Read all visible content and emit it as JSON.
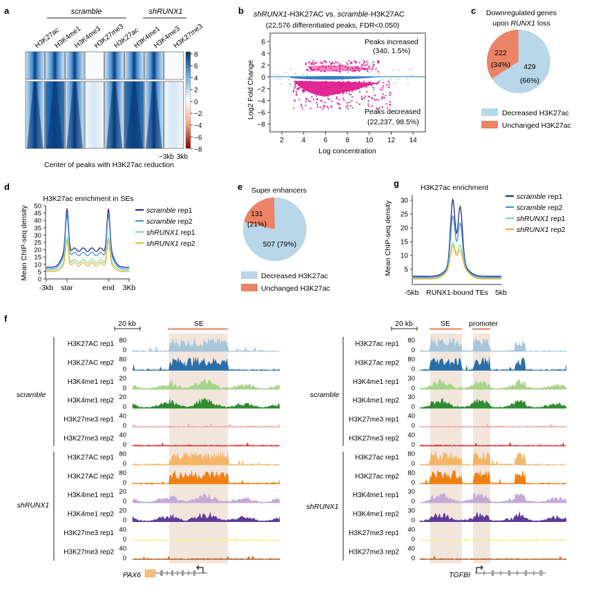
{
  "panel_a": {
    "letter": "a",
    "group1": "scramble",
    "group2": "shRUNX1",
    "cols": [
      "H3K27ac",
      "H3K4me1",
      "H3K4me3",
      "H3K27me3",
      "H3K27ac",
      "H3K4me1",
      "H3K4me3",
      "H3K27me3"
    ],
    "colorbar_ticks": [
      "8",
      "6",
      "4",
      "2",
      "0",
      "−2",
      "−4",
      "−6",
      "−8"
    ],
    "xticks": [
      "−3kb",
      "3kb"
    ],
    "caption": "Center of peaks with H3K27ac reduction"
  },
  "panel_b": {
    "letter": "b",
    "title1_italic": "shRUNX1",
    "title1_rest": "-H3K27AC vs. ",
    "title1_italic2": "scramble",
    "title1_end": "-H3K27AC",
    "title2": "(22,576 differentiated peaks, FDR<0.050)",
    "ylabel": "Log2 Fold Change",
    "xlabel": "Log concentration",
    "xticks": [
      "2",
      "4",
      "6",
      "8",
      "10",
      "12",
      "14"
    ],
    "yticks": [
      "6",
      "4",
      "2",
      "0",
      "−2",
      "−4",
      "−6",
      "−8"
    ],
    "ann_up1": "Peaks increased",
    "ann_up2": "(340, 1.5%)",
    "ann_dn1": "Peaks decreased",
    "ann_dn2": "(22,237, 98.5%)"
  },
  "panel_c": {
    "letter": "c",
    "title1": "Downregulated genes",
    "title2_pre": "upon ",
    "title2_italic": "RUNX1",
    "title2_post": " loss",
    "slice1_n": "429",
    "slice1_pct": "(66%)",
    "slice2_n": "222",
    "slice2_pct": "(34%)",
    "legend1": "Decreased H3K27ac",
    "legend2": "Unchanged H3K27ac"
  },
  "panel_d": {
    "letter": "d",
    "title": "H3K27ac enrichment in SEs",
    "ylabel": "Mean ChIP-seq density",
    "yticks": [
      "50",
      "45",
      "40",
      "35",
      "30",
      "25",
      "20",
      "15",
      "10",
      "5",
      "0"
    ],
    "xticks": [
      "-3kb",
      "star",
      "end",
      "3Kb"
    ],
    "legend": [
      {
        "it": "scramble",
        "rest": " rep1",
        "color": "#1f2a8a"
      },
      {
        "it": "scramble",
        "rest": " rep2",
        "color": "#3d8fe0"
      },
      {
        "it": "shRUNX1",
        "rest": " rep1",
        "color": "#7fe07f"
      },
      {
        "it": "shRUNX1",
        "rest": " rep2",
        "color": "#f0b23a"
      }
    ]
  },
  "panel_e": {
    "letter": "e",
    "title": "Super enhancers",
    "slice1": "507 (79%)",
    "slice2_n": "131",
    "slice2_pct": "(21%)",
    "legend1": "Decreased H3K27ac",
    "legend2": "Unchanged H3K27ac"
  },
  "panel_g": {
    "letter": "g",
    "title": "H3K27ac enrichment",
    "ylabel": "Mean ChIP-seq density",
    "yticks": [
      "30",
      "25",
      "20",
      "15",
      "10",
      "5"
    ],
    "xticks": [
      "-5kb",
      "RUNX1-bound TEs",
      "5kb"
    ],
    "legend": [
      {
        "it": "scramble",
        "rest": " rep1",
        "color": "#1f2a8a"
      },
      {
        "it": "scramble",
        "rest": " rep2",
        "color": "#3d8fe0"
      },
      {
        "it": "shRUNX1",
        "rest": " rep1",
        "color": "#7fe07f"
      },
      {
        "it": "shRUNX1",
        "rest": " rep2",
        "color": "#f0b23a"
      }
    ]
  },
  "panel_f": {
    "letter": "f",
    "scale": "20 kb",
    "left_region": "SE",
    "right_region1": "SE",
    "right_region2": "promoter",
    "group1": "scramble",
    "group2": "shRUNX1",
    "left_gene": "PAX6",
    "right_gene": "TGFBI",
    "left_tracks": [
      {
        "label": "H3K27AC rep1",
        "max": "80",
        "color": "#a7c6da"
      },
      {
        "label": "H3K27AC rep2",
        "max": "80",
        "color": "#2a6fa8"
      },
      {
        "label": "H3K4me1 rep1",
        "max": "20",
        "color": "#a8d48a"
      },
      {
        "label": "H3K4me1 rep2",
        "max": "20",
        "color": "#2e8b2e"
      },
      {
        "label": "H3K27me3 rep1",
        "max": "40",
        "color": "#f2a7a7"
      },
      {
        "label": "H3K27me3 rep2",
        "max": "40",
        "color": "#d63b3b"
      },
      {
        "label": "H3K27AC rep1",
        "max": "80",
        "color": "#f5b567"
      },
      {
        "label": "H3K27AC rep2",
        "max": "80",
        "color": "#f07f12"
      },
      {
        "label": "H3K4me1 rep1",
        "max": "20",
        "color": "#c3aad6"
      },
      {
        "label": "H3K4me1 rep2",
        "max": "20",
        "color": "#5e3a9a"
      },
      {
        "label": "H3K27me3 rep1",
        "max": "40",
        "color": "#f6ee9a"
      },
      {
        "label": "H3K27me3 rep2",
        "max": "40",
        "color": "#b8662b"
      }
    ],
    "right_tracks": [
      {
        "label": "H3K27ac rep1",
        "max": "80",
        "color": "#a7c6da"
      },
      {
        "label": "H3K27ac rep2",
        "max": "80",
        "color": "#2a6fa8"
      },
      {
        "label": "H3K4me1 rep1",
        "max": "30",
        "color": "#a8d48a"
      },
      {
        "label": "H3K4me1 rep2",
        "max": "30",
        "color": "#2e8b2e"
      },
      {
        "label": "H3K27me3 rep1",
        "max": "40",
        "color": "#f2a7a7"
      },
      {
        "label": "H3K27me3 rep2",
        "max": "40",
        "color": "#d63b3b"
      },
      {
        "label": "H3K27ac rep1",
        "max": "80",
        "color": "#f5b567"
      },
      {
        "label": "H3K27ac rep2",
        "max": "80",
        "color": "#f07f12"
      },
      {
        "label": "H3K4me1 rep1",
        "max": "30",
        "color": "#c3aad6"
      },
      {
        "label": "H3K4me1 rep2",
        "max": "30",
        "color": "#5e3a9a"
      },
      {
        "label": "H3K27me3 rep1",
        "max": "40",
        "color": "#f6ee9a"
      },
      {
        "label": "H3K27me3 rep2",
        "max": "40",
        "color": "#b8662b"
      }
    ]
  },
  "colors": {
    "pie_blue": "#b9d7e8",
    "pie_orange": "#ec8366",
    "ma_magenta": "#e21e8e",
    "ma_blue": "#1f6fb8",
    "heat_dark": "#0b3c7a",
    "heat_mid": "#3f8fd0",
    "shade": "#efe1d6",
    "region_bar": "#f0a48a"
  }
}
